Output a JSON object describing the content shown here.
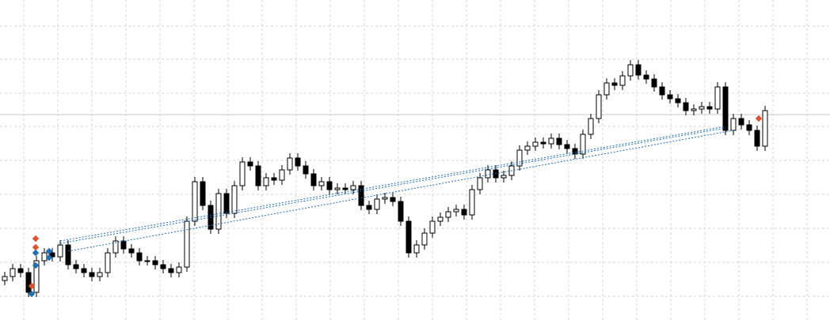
{
  "chart_data": {
    "type": "candlestick",
    "open": [
      50,
      55,
      65,
      60,
      35,
      75,
      85,
      80,
      95,
      70,
      65,
      60,
      55,
      60,
      85,
      100,
      90,
      85,
      75,
      75,
      70,
      65,
      60,
      67,
      125,
      175,
      145,
      115,
      160,
      135,
      170,
      200,
      195,
      170,
      180,
      177,
      190,
      205,
      195,
      185,
      170,
      175,
      165,
      167,
      165,
      170,
      145,
      140,
      153,
      155,
      150,
      125,
      85,
      95,
      110,
      125,
      130,
      137,
      140,
      133,
      165,
      180,
      190,
      180,
      183,
      195,
      215,
      220,
      225,
      223,
      230,
      222,
      217,
      210,
      235,
      255,
      285,
      300,
      297,
      309,
      323,
      310,
      305,
      295,
      285,
      280,
      275,
      265,
      267,
      270,
      267,
      295,
      240,
      255,
      247,
      240,
      220
    ],
    "high": [
      61,
      71,
      71,
      66,
      81,
      91,
      91,
      101,
      101,
      76,
      71,
      66,
      66,
      91,
      106,
      106,
      96,
      91,
      81,
      81,
      76,
      71,
      73,
      131,
      181,
      181,
      151,
      166,
      166,
      176,
      206,
      206,
      201,
      186,
      186,
      196,
      211,
      211,
      201,
      191,
      181,
      181,
      173,
      173,
      176,
      176,
      151,
      159,
      161,
      161,
      156,
      131,
      101,
      116,
      131,
      136,
      143,
      146,
      146,
      171,
      186,
      196,
      196,
      189,
      201,
      221,
      226,
      231,
      231,
      236,
      236,
      228,
      223,
      241,
      261,
      291,
      306,
      306,
      315,
      329,
      329,
      316,
      311,
      301,
      291,
      286,
      281,
      273,
      276,
      276,
      301,
      301,
      261,
      261,
      253,
      246,
      271
    ],
    "low": [
      44,
      49,
      54,
      29,
      29,
      69,
      74,
      74,
      64,
      59,
      54,
      49,
      49,
      54,
      79,
      84,
      79,
      69,
      69,
      64,
      59,
      54,
      54,
      61,
      119,
      139,
      109,
      109,
      129,
      129,
      164,
      189,
      164,
      164,
      171,
      171,
      184,
      189,
      179,
      164,
      164,
      159,
      159,
      159,
      159,
      139,
      134,
      134,
      147,
      144,
      119,
      79,
      79,
      89,
      104,
      119,
      124,
      131,
      127,
      127,
      159,
      174,
      174,
      174,
      177,
      189,
      209,
      214,
      217,
      217,
      216,
      211,
      204,
      204,
      229,
      249,
      279,
      291,
      291,
      303,
      304,
      299,
      289,
      279,
      274,
      269,
      259,
      259,
      261,
      261,
      261,
      234,
      234,
      241,
      234,
      214,
      214
    ],
    "close": [
      55,
      65,
      60,
      35,
      75,
      85,
      80,
      95,
      70,
      65,
      60,
      55,
      60,
      85,
      100,
      90,
      85,
      75,
      75,
      70,
      65,
      60,
      67,
      125,
      175,
      145,
      115,
      160,
      135,
      170,
      200,
      195,
      170,
      180,
      177,
      190,
      205,
      195,
      185,
      170,
      175,
      165,
      167,
      165,
      170,
      145,
      140,
      153,
      155,
      150,
      125,
      85,
      95,
      110,
      125,
      130,
      137,
      140,
      133,
      165,
      180,
      190,
      180,
      183,
      195,
      215,
      220,
      225,
      223,
      230,
      222,
      217,
      210,
      235,
      255,
      285,
      300,
      297,
      309,
      323,
      310,
      305,
      295,
      285,
      280,
      275,
      265,
      267,
      270,
      267,
      295,
      240,
      255,
      247,
      240,
      220,
      265
    ],
    "up_color": "#ffffff",
    "down_color": "#000000",
    "ylim": [
      0,
      405
    ],
    "yticks": [
      30,
      73,
      116,
      159,
      202,
      245,
      287,
      330,
      372
    ],
    "xlim": [
      -0.6,
      104.2
    ],
    "xticks": [
      2.4,
      6.7,
      11,
      15.3,
      19.6,
      23.9,
      28.2,
      32.5,
      36.8,
      41.1,
      45.4,
      49.7,
      54,
      58.3,
      62.6,
      66.9,
      71.2,
      75.5,
      79.8,
      84.1,
      88.4,
      92.7,
      97,
      101.3
    ],
    "grid": true,
    "price_line": 260,
    "trend_lines": [
      {
        "color": "#1f6fb5",
        "x": [
          7,
          91
        ],
        "y": [
          97,
          243
        ]
      },
      {
        "color": "#1f6fb5",
        "x": [
          8,
          92
        ],
        "y": [
          87,
          240
        ]
      },
      {
        "color": "#1f6fb5",
        "x": [
          7,
          91
        ],
        "y": [
          100,
          245
        ]
      }
    ],
    "markers": [
      {
        "color": "#e0522a",
        "x": 3.9,
        "y": 103
      },
      {
        "color": "#e0522a",
        "x": 3.9,
        "y": 92
      },
      {
        "color": "#e0522a",
        "x": 3.4,
        "y": 43
      },
      {
        "color": "#e0522a",
        "x": 95.2,
        "y": 255
      },
      {
        "color": "#1f6fb5",
        "x": 3.9,
        "y": 85
      },
      {
        "color": "#1f6fb5",
        "x": 3.9,
        "y": 69
      },
      {
        "color": "#1f6fb5",
        "x": 5.6,
        "y": 87
      },
      {
        "color": "#1f6fb5",
        "x": 5.6,
        "y": 79
      },
      {
        "color": "#1f6fb5",
        "x": 3.4,
        "y": 33
      }
    ]
  }
}
